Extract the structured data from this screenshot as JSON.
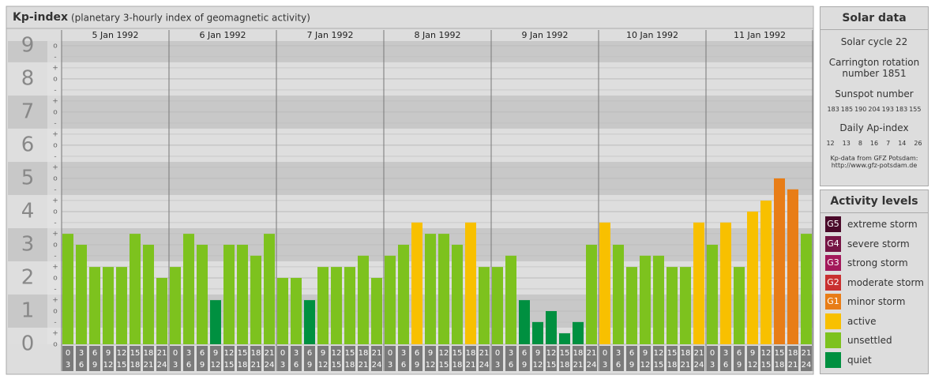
{
  "chart_data": {
    "type": "bar",
    "title": "Kp-index",
    "subtitle": "(planetary 3-hourly index of geomagnetic activity)",
    "days": [
      "5 Jan 1992",
      "6 Jan 1992",
      "7 Jan 1992",
      "8 Jan 1992",
      "9 Jan 1992",
      "10 Jan 1992",
      "11 Jan 1992"
    ],
    "hours": [
      {
        "from": "0",
        "to": "3"
      },
      {
        "from": "3",
        "to": "6"
      },
      {
        "from": "6",
        "to": "9"
      },
      {
        "from": "9",
        "to": "12"
      },
      {
        "from": "12",
        "to": "15"
      },
      {
        "from": "15",
        "to": "18"
      },
      {
        "from": "18",
        "to": "21"
      },
      {
        "from": "21",
        "to": "24"
      }
    ],
    "values": [
      3.33,
      3,
      2.33,
      2.33,
      2.33,
      3.33,
      3,
      2,
      2.33,
      3.33,
      3,
      1.33,
      3,
      3,
      2.67,
      3.33,
      2,
      2,
      1.33,
      2.33,
      2.33,
      2.33,
      2.67,
      2,
      2.67,
      3,
      3.67,
      3.33,
      3.33,
      3,
      3.67,
      2.33,
      2.33,
      2.67,
      1.33,
      0.67,
      1,
      0.33,
      0.67,
      3,
      3.67,
      3,
      2.33,
      2.67,
      2.67,
      2.33,
      2.33,
      3.67,
      3,
      3.67,
      2.33,
      4,
      4.33,
      5,
      4.67,
      3.33
    ],
    "colors": [
      "#7dc21e",
      "#7dc21e",
      "#7dc21e",
      "#7dc21e",
      "#7dc21e",
      "#7dc21e",
      "#7dc21e",
      "#7dc21e",
      "#7dc21e",
      "#7dc21e",
      "#7dc21e",
      "#009040",
      "#7dc21e",
      "#7dc21e",
      "#7dc21e",
      "#7dc21e",
      "#7dc21e",
      "#7dc21e",
      "#009040",
      "#7dc21e",
      "#7dc21e",
      "#7dc21e",
      "#7dc21e",
      "#7dc21e",
      "#7dc21e",
      "#7dc21e",
      "#f8c000",
      "#7dc21e",
      "#7dc21e",
      "#7dc21e",
      "#f8c000",
      "#7dc21e",
      "#7dc21e",
      "#7dc21e",
      "#009040",
      "#009040",
      "#009040",
      "#009040",
      "#009040",
      "#7dc21e",
      "#f8c000",
      "#7dc21e",
      "#7dc21e",
      "#7dc21e",
      "#7dc21e",
      "#7dc21e",
      "#7dc21e",
      "#f8c000",
      "#7dc21e",
      "#f8c000",
      "#7dc21e",
      "#f8c000",
      "#f8c000",
      "#e87d17",
      "#e87d17",
      "#7dc21e"
    ],
    "ylim": [
      0,
      9.14
    ],
    "yticks": [
      0,
      1,
      2,
      3,
      4,
      5,
      6,
      7,
      8,
      9
    ],
    "minor_labels": [
      "-",
      "o",
      "+"
    ]
  },
  "solar": {
    "title": "Solar data",
    "cycle_label": "Solar cycle",
    "cycle": 22,
    "carrington_label": "Carrington rotation number",
    "carrington": 1851,
    "sunspot_label": "Sunspot number",
    "sunspot": [
      183,
      185,
      190,
      204,
      193,
      183,
      155
    ],
    "ap_label": "Daily Ap-index",
    "ap": [
      12,
      13,
      8,
      16,
      7,
      14,
      26
    ],
    "source": "Kp-data from GFZ Potsdam:",
    "url": "http://www.gfz-potsdam.de"
  },
  "levels": {
    "title": "Activity levels",
    "items": [
      {
        "code": "G5",
        "label": "extreme storm",
        "color": "#4a0a2a"
      },
      {
        "code": "G4",
        "label": "severe storm",
        "color": "#761545"
      },
      {
        "code": "G3",
        "label": "strong storm",
        "color": "#a3195b"
      },
      {
        "code": "G2",
        "label": "moderate storm",
        "color": "#c93030"
      },
      {
        "code": "G1",
        "label": "minor storm",
        "color": "#e87d17"
      },
      {
        "label": "active",
        "color": "#f8c000"
      },
      {
        "label": "unsettled",
        "color": "#7dc21e"
      },
      {
        "label": "quiet",
        "color": "#009040"
      }
    ]
  }
}
